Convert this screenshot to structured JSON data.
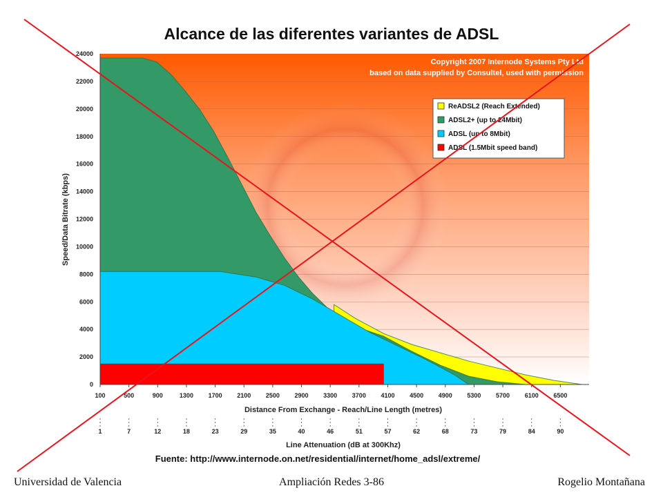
{
  "slide": {
    "title": "Alcance de las diferentes variantes de ADSL",
    "source": "Fuente: http://www.internode.on.net/residential/internet/home_adsl/extreme/",
    "footer_left": "Universidad de Valencia",
    "footer_center": "Ampliación Redes 3-86",
    "footer_right": "Rogelio Montañana"
  },
  "colors": {
    "readsl2": "#ffff00",
    "adsl2plus": "#339966",
    "adsl8": "#00ccff",
    "adsl15": "#ff0000",
    "cross": "#e8141b"
  },
  "chart_data": {
    "type": "area",
    "copyright": [
      "Copyright 2007 Internode Systems Pty Ltd",
      "based on data supplied by Consultel, used with permission"
    ],
    "ylabel": "Speed/Data Bitrate (kbps)",
    "xlabel": "Distance From Exchange - Reach/Line Length (metres)",
    "x2label": "Line Attenuation (dB at 300Khz)",
    "xlim": [
      100,
      7000
    ],
    "ylim": [
      0,
      24000
    ],
    "yticks": [
      0,
      2000,
      4000,
      6000,
      8000,
      10000,
      12000,
      14000,
      16000,
      18000,
      20000,
      22000,
      24000
    ],
    "xticks": [
      "100",
      "500",
      "900",
      "1300",
      "1700",
      "2100",
      "2500",
      "2900",
      "3300",
      "3700",
      "4100",
      "4500",
      "4900",
      "5300",
      "5700",
      "6100",
      "6500"
    ],
    "x2ticks": [
      "1",
      "7",
      "12",
      "18",
      "23",
      "29",
      "35",
      "40",
      "46",
      "51",
      "57",
      "62",
      "68",
      "73",
      "79",
      "84",
      "90"
    ],
    "legend_position": "top-right",
    "series": [
      {
        "name": "ReADSL2 (Reach Extended)",
        "x": [
          3400,
          3700,
          4100,
          4500,
          4900,
          5300,
          5700,
          6100,
          6500,
          6900
        ],
        "y": [
          5800,
          4800,
          3700,
          2900,
          2300,
          1700,
          1200,
          700,
          300,
          0
        ]
      },
      {
        "name": "ADSL2+ (up to 24Mbit)",
        "x": [
          100,
          300,
          500,
          700,
          900,
          1100,
          1300,
          1500,
          1700,
          1900,
          2100,
          2300,
          2500,
          2700,
          2900,
          3100,
          3300,
          3500,
          3700,
          4100,
          4500,
          4900,
          5300,
          5700,
          6100
        ],
        "y": [
          23700,
          23700,
          23700,
          23700,
          23400,
          22500,
          21300,
          20000,
          18400,
          16500,
          14500,
          12500,
          10800,
          9200,
          7800,
          6600,
          5600,
          4800,
          4200,
          3500,
          2400,
          1400,
          600,
          200,
          0
        ]
      },
      {
        "name": "ADSL (up to 8Mbit)",
        "x": [
          100,
          1800,
          2300,
          2700,
          3100,
          3500,
          3900,
          4300,
          4700,
          5100,
          5300
        ],
        "y": [
          8200,
          8200,
          7800,
          7200,
          6200,
          5000,
          3800,
          2800,
          1800,
          700,
          0
        ]
      },
      {
        "name": "ADSL (1.5Mbit speed band)",
        "x": [
          100,
          4100
        ],
        "y": [
          1500,
          1500
        ]
      }
    ]
  }
}
